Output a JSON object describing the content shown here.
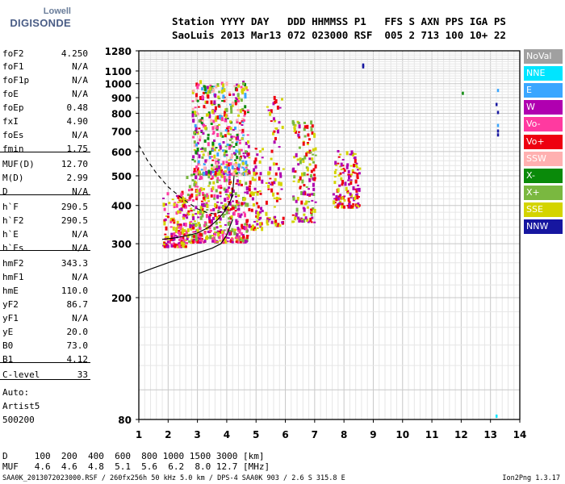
{
  "logo": {
    "top": "Lowell",
    "bottom": "DIGISONDE"
  },
  "header": {
    "line1": "Station YYYY DAY   DDD HHMMSS P1   FFS S AXN PPS IGA PS",
    "line2": "SaoLuis 2013 Mar13 072 023000 RSF  005 2 713 100 10+ 22"
  },
  "params": [
    {
      "label": "foF2",
      "value": "4.250"
    },
    {
      "label": "foF1",
      "value": "N/A"
    },
    {
      "label": "foF1p",
      "value": "N/A"
    },
    {
      "label": "foE",
      "value": "N/A"
    },
    {
      "label": "foEp",
      "value": "0.48"
    },
    {
      "label": "fxI",
      "value": "4.90"
    },
    {
      "label": "foEs",
      "value": "N/A"
    },
    {
      "label": "fmin",
      "value": "1.75"
    },
    {
      "label": "MUF(D)",
      "value": "12.70"
    },
    {
      "label": "M(D)",
      "value": "2.99"
    },
    {
      "label": "D",
      "value": "N/A"
    },
    {
      "label": "h`F",
      "value": "290.5"
    },
    {
      "label": "h`F2",
      "value": "290.5"
    },
    {
      "label": "h`E",
      "value": "N/A"
    },
    {
      "label": "h`Es",
      "value": "N/A"
    },
    {
      "label": "hmF2",
      "value": "343.3"
    },
    {
      "label": "hmF1",
      "value": "N/A"
    },
    {
      "label": "hmE",
      "value": "110.0"
    },
    {
      "label": "yF2",
      "value": "86.7"
    },
    {
      "label": "yF1",
      "value": "N/A"
    },
    {
      "label": "yE",
      "value": "20.0"
    },
    {
      "label": "B0",
      "value": "73.0"
    },
    {
      "label": "B1",
      "value": "4.12"
    },
    {
      "label": "C-level",
      "value": "33"
    },
    {
      "label": "Auto:",
      "value": ""
    },
    {
      "label": "Artist5",
      "value": ""
    },
    {
      "label": "500200",
      "value": ""
    }
  ],
  "legend": [
    {
      "label": "NoVal",
      "color": "#a0a0a0",
      "text_color": "#ffffff"
    },
    {
      "label": "NNE",
      "color": "#00e5ff",
      "text_color": "#ffffff"
    },
    {
      "label": "E",
      "color": "#3aa6ff",
      "text_color": "#ffffff"
    },
    {
      "label": "W",
      "color": "#b000b0",
      "text_color": "#ffffff"
    },
    {
      "label": "Vo-",
      "color": "#ff3aa0",
      "text_color": "#ffffff"
    },
    {
      "label": "Vo+",
      "color": "#ee0010",
      "text_color": "#ffffff"
    },
    {
      "label": "SSW",
      "color": "#ffb0b0",
      "text_color": "#ffffff"
    },
    {
      "label": "X-",
      "color": "#0a8a0a",
      "text_color": "#ffffff"
    },
    {
      "label": "X+",
      "color": "#7ab840",
      "text_color": "#ffffff"
    },
    {
      "label": "SSE",
      "color": "#d4d400",
      "text_color": "#ffffff"
    },
    {
      "label": "NNW",
      "color": "#1616a0",
      "text_color": "#ffffff"
    }
  ],
  "bottom": {
    "row1": "D     100  200  400  600  800 1000 1500 3000 [km]",
    "row2": "MUF   4.6  4.6  4.8  5.1  5.6  6.2  8.0 12.7 [MHz]"
  },
  "footer": {
    "left": "SAA0K_2013072023000.RSF / 260fx256h 50 kHz 5.0 km / DPS-4 SAA0K 903 / 2.6 S 315.8 E",
    "right": "Ion2Png 1.3.17"
  },
  "chart_data": {
    "type": "scatter",
    "title": "",
    "xlabel": "",
    "ylabel": "",
    "xlim": [
      1,
      14
    ],
    "ylim": [
      80,
      1280
    ],
    "y_scale": "log",
    "x_ticks": [
      1,
      2,
      3,
      4,
      5,
      6,
      7,
      8,
      9,
      10,
      11,
      12,
      13,
      14
    ],
    "y_ticks": [
      80,
      200,
      300,
      400,
      500,
      600,
      700,
      800,
      900,
      1000,
      1100,
      1280
    ],
    "grid": true,
    "legend_placement": "right",
    "clusters": [
      {
        "x": [
          1.8,
          2.6
        ],
        "y": [
          290,
          440
        ],
        "count": 160,
        "colors": [
          "#ee0010",
          "#b000b0",
          "#ff3aa0",
          "#d4d400"
        ]
      },
      {
        "x": [
          2.6,
          4.7
        ],
        "y": [
          300,
          500
        ],
        "count": 420,
        "colors": [
          "#b000b0",
          "#ee0010",
          "#d4d400",
          "#7ab840",
          "#ff3aa0"
        ]
      },
      {
        "x": [
          2.8,
          4.7
        ],
        "y": [
          500,
          1000
        ],
        "count": 480,
        "colors": [
          "#b000b0",
          "#ee0010",
          "#d4d400",
          "#7ab840",
          "#ff3aa0",
          "#0a8a0a",
          "#3aa6ff",
          "#ffb0b0"
        ]
      },
      {
        "x": [
          4.7,
          5.2
        ],
        "y": [
          330,
          620
        ],
        "count": 70,
        "colors": [
          "#d4d400",
          "#ee0010",
          "#b000b0"
        ]
      },
      {
        "x": [
          5.3,
          5.9
        ],
        "y": [
          340,
          900
        ],
        "count": 80,
        "colors": [
          "#b000b0",
          "#d4d400",
          "#ee0010"
        ]
      },
      {
        "x": [
          6.2,
          7.0
        ],
        "y": [
          350,
          750
        ],
        "count": 140,
        "colors": [
          "#b000b0",
          "#ee0010",
          "#d4d400",
          "#7ab840"
        ]
      },
      {
        "x": [
          7.6,
          8.5
        ],
        "y": [
          390,
          600
        ],
        "count": 130,
        "colors": [
          "#b000b0",
          "#ee0010",
          "#d4d400"
        ]
      }
    ],
    "isolated_points": [
      {
        "x": 8.65,
        "y": 1150,
        "color": "#1616a0"
      },
      {
        "x": 8.65,
        "y": 1135,
        "color": "#1616a0"
      },
      {
        "x": 12.05,
        "y": 930,
        "color": "#0a8a0a"
      },
      {
        "x": 13.25,
        "y": 950,
        "color": "#3aa6ff"
      },
      {
        "x": 13.2,
        "y": 855,
        "color": "#1616a0"
      },
      {
        "x": 13.25,
        "y": 805,
        "color": "#1616a0"
      },
      {
        "x": 13.25,
        "y": 730,
        "color": "#3aa6ff"
      },
      {
        "x": 13.25,
        "y": 700,
        "color": "#1616a0"
      },
      {
        "x": 13.25,
        "y": 680,
        "color": "#1616a0"
      },
      {
        "x": 13.2,
        "y": 82,
        "color": "#00e5ff"
      }
    ],
    "trace_solid": {
      "x": [
        1.0,
        1.5,
        2.0,
        2.5,
        3.0,
        3.5,
        3.8,
        4.0,
        4.1,
        4.2
      ],
      "y": [
        240,
        250,
        260,
        270,
        280,
        290,
        300,
        320,
        340,
        360
      ]
    },
    "trace_dashed": {
      "x": [
        1.0,
        1.3,
        1.6,
        2.0,
        2.5,
        3.0,
        3.3,
        3.6,
        3.9,
        4.1,
        4.25
      ],
      "y": [
        630,
        560,
        510,
        460,
        420,
        390,
        380,
        375,
        385,
        410,
        440
      ]
    },
    "profile_curve": {
      "x": [
        1.8,
        2.2,
        2.6,
        3.0,
        3.4,
        3.7,
        3.9,
        4.05,
        4.15,
        4.22,
        4.25
      ],
      "y": [
        310,
        313,
        318,
        325,
        340,
        360,
        380,
        400,
        420,
        460,
        500
      ]
    }
  }
}
